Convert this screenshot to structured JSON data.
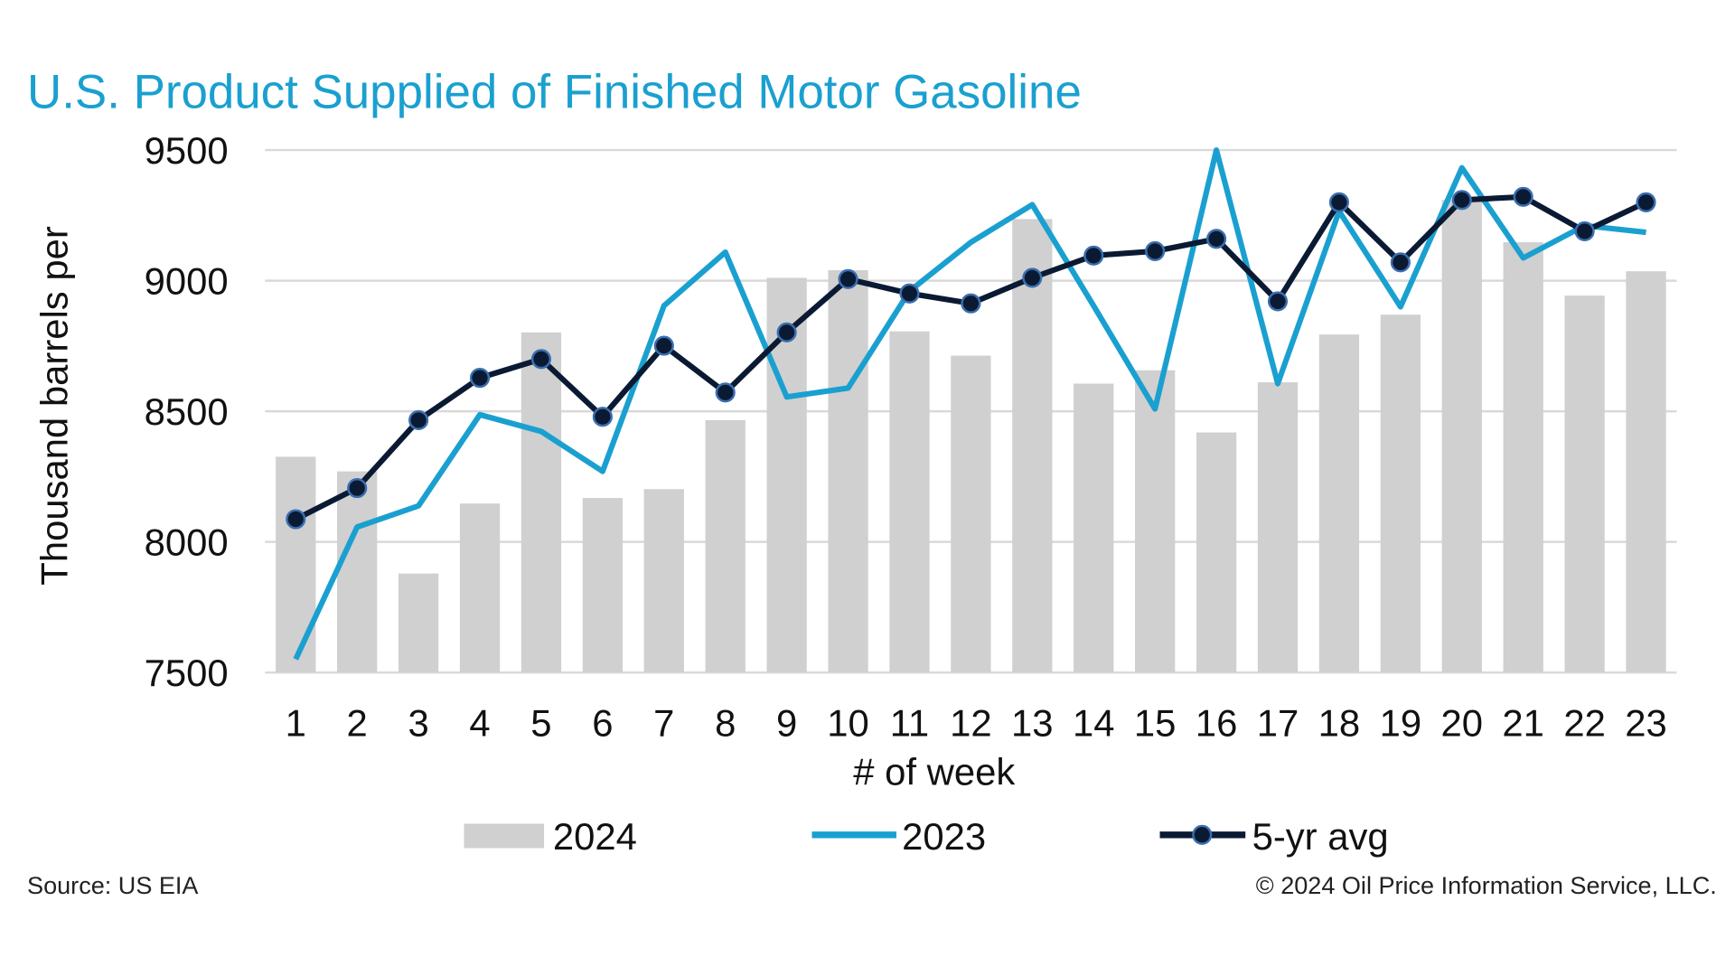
{
  "chart_data": {
    "type": "bar+line",
    "title": "U.S. Product Supplied of Finished Motor Gasoline",
    "xlabel": "# of week",
    "ylabel": "Thousand barrels per",
    "ylim": [
      7500,
      9500
    ],
    "yticks": [
      7500,
      8000,
      8500,
      9000,
      9500
    ],
    "grid": true,
    "legend_position": "bottom",
    "categories": [
      "1",
      "2",
      "3",
      "4",
      "5",
      "6",
      "7",
      "8",
      "9",
      "10",
      "11",
      "12",
      "13",
      "14",
      "15",
      "16",
      "17",
      "18",
      "19",
      "20",
      "21",
      "22",
      "23"
    ],
    "series": [
      {
        "name": "2024",
        "type": "bar",
        "color": "#d0d0d0",
        "values": [
          8326,
          8270,
          7879,
          8147,
          8802,
          8168,
          8202,
          8466,
          9011,
          9040,
          8806,
          8713,
          9236,
          8606,
          8657,
          8419,
          8611,
          8794,
          8870,
          9309,
          9147,
          8943,
          9036
        ]
      },
      {
        "name": "2023",
        "type": "line",
        "color": "#1aa0d0",
        "values": [
          7551,
          8057,
          8138,
          8487,
          8423,
          8270,
          8904,
          9109,
          8555,
          8589,
          8960,
          9147,
          9291,
          8904,
          8509,
          9500,
          8606,
          9266,
          8900,
          9432,
          9087,
          9211,
          9185
        ]
      },
      {
        "name": "5-yr avg",
        "type": "line-markers",
        "color": "#0b1a33",
        "marker_edge": "#3a6fb0",
        "values": [
          8087,
          8206,
          8466,
          8628,
          8700,
          8479,
          8751,
          8572,
          8802,
          9006,
          8951,
          8913,
          9011,
          9096,
          9113,
          9160,
          8921,
          9300,
          9070,
          9309,
          9321,
          9189,
          9300
        ]
      }
    ]
  },
  "footer": {
    "source": "Source: US EIA",
    "copyright": "© 2024 Oil Price Information Service, LLC."
  }
}
